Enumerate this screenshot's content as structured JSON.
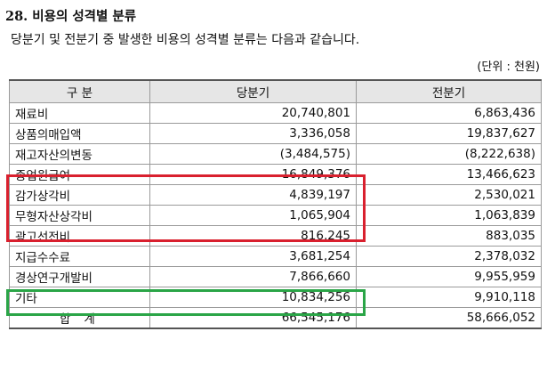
{
  "heading": "28. 비용의 성격별 분류",
  "description": "당분기 및 전분기 중 발생한 비용의 성격별 분류는 다음과 같습니다.",
  "unit_note": "(단위 : 천원)",
  "table": {
    "headers": [
      "구 분",
      "당분기",
      "전분기"
    ],
    "rows": [
      {
        "label": "재료비",
        "current": "20,740,801",
        "previous": "6,863,436"
      },
      {
        "label": "상품의매입액",
        "current": "3,336,058",
        "previous": "19,837,627"
      },
      {
        "label": "재고자산의변동",
        "current": "(3,484,575)",
        "previous": "(8,222,638)"
      },
      {
        "label": "종업원급여",
        "current": "16,849,376",
        "previous": "13,466,623"
      },
      {
        "label": "감가상각비",
        "current": "4,839,197",
        "previous": "2,530,021"
      },
      {
        "label": "무형자산상각비",
        "current": "1,065,904",
        "previous": "1,063,839"
      },
      {
        "label": "광고선전비",
        "current": "816,245",
        "previous": "883,035"
      },
      {
        "label": "지급수수료",
        "current": "3,681,254",
        "previous": "2,378,032"
      },
      {
        "label": "경상연구개발비",
        "current": "7,866,660",
        "previous": "9,955,959"
      },
      {
        "label": "기타",
        "current": "10,834,256",
        "previous": "9,910,118"
      }
    ],
    "total": {
      "label": "합 계",
      "current": "66,545,176",
      "previous": "58,666,052"
    }
  },
  "highlight_colors": {
    "red": "#d9202e",
    "green": "#2aa547"
  }
}
